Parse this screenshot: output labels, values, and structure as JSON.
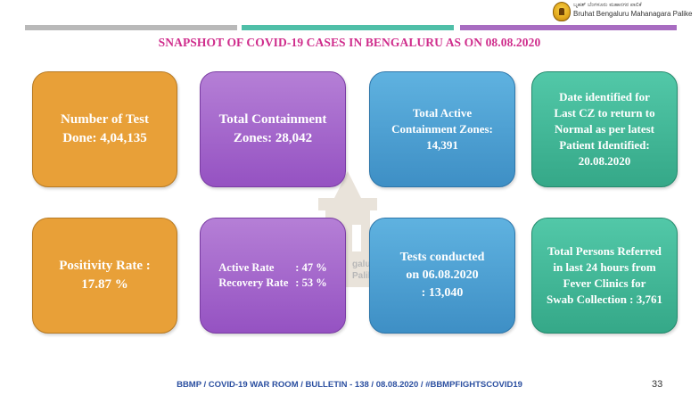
{
  "header": {
    "logo_line1": "ಬೃಹತ್ ಬೆಂಗಳೂರು ಮಹಾನಗರ ಪಾಲಿಕೆ",
    "logo_line2": "Bruhat Bengaluru Mahanagara Palike"
  },
  "title": "SNAPSHOT OF COVID-19 CASES IN BENGALURU AS ON 08.08.2020",
  "cards": {
    "tests_done": "Number of Test\nDone: 4,04,135",
    "total_containment": "Total Containment\nZones: 28,042",
    "active_containment": "Total Active\nContainment Zones:\n14,391",
    "last_cz_date": "Date identified for\nLast CZ to return to\nNormal as per latest\nPatient Identified:\n20.08.2020",
    "positivity_rate": "Positivity Rate :\n17.87  %",
    "active_rate_label": "Active Rate",
    "active_rate_value": ": 47 %",
    "recovery_rate_label": "Recovery Rate",
    "recovery_rate_value": ": 53 %",
    "tests_conducted": "Tests conducted\non 06.08.2020\n: 13,040",
    "persons_referred": "Total Persons Referred\nin last 24 hours from\nFever Clinics for\nSwab Collection : 3,761"
  },
  "watermark_text": "galuru\nPalike",
  "footer": {
    "bulletin": "BBMP / COVID-19 WAR ROOM / BULLETIN - 138 / 08.08.2020 / #BBMPFIGHTSCOVID19",
    "page_number": "33"
  },
  "colors": {
    "title": "#cf2d8c",
    "orange": "#e8a038",
    "purple": "#a86cc1",
    "blue": "#4a9fd4",
    "teal": "#3fb896",
    "footer": "#2b4fa0"
  }
}
